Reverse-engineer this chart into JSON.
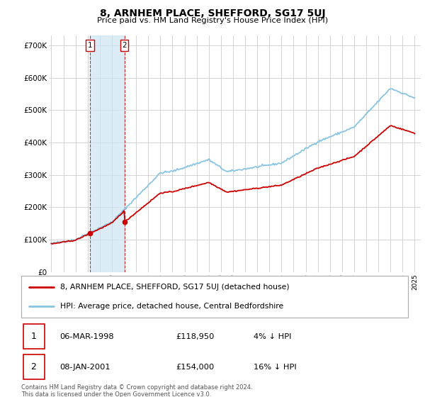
{
  "title": "8, ARNHEM PLACE, SHEFFORD, SG17 5UJ",
  "subtitle": "Price paid vs. HM Land Registry's House Price Index (HPI)",
  "ylabel_ticks": [
    "£0",
    "£100K",
    "£200K",
    "£300K",
    "£400K",
    "£500K",
    "£600K",
    "£700K"
  ],
  "ytick_values": [
    0,
    100000,
    200000,
    300000,
    400000,
    500000,
    600000,
    700000
  ],
  "ylim": [
    0,
    730000
  ],
  "xlim_start": 1994.8,
  "xlim_end": 2025.5,
  "sale1_x": 1998.18,
  "sale1_y": 118950,
  "sale2_x": 2001.03,
  "sale2_y": 154000,
  "legend_line1": "8, ARNHEM PLACE, SHEFFORD, SG17 5UJ (detached house)",
  "legend_line2": "HPI: Average price, detached house, Central Bedfordshire",
  "table_row1": [
    "1",
    "06-MAR-1998",
    "£118,950",
    "4% ↓ HPI"
  ],
  "table_row2": [
    "2",
    "08-JAN-2001",
    "£154,000",
    "16% ↓ HPI"
  ],
  "footnote": "Contains HM Land Registry data © Crown copyright and database right 2024.\nThis data is licensed under the Open Government Licence v3.0.",
  "sale_color": "#cc0000",
  "hpi_color": "#89c4e1",
  "grid_color": "#cccccc",
  "background_color": "#ffffff",
  "shade_color": "#cce4f5"
}
